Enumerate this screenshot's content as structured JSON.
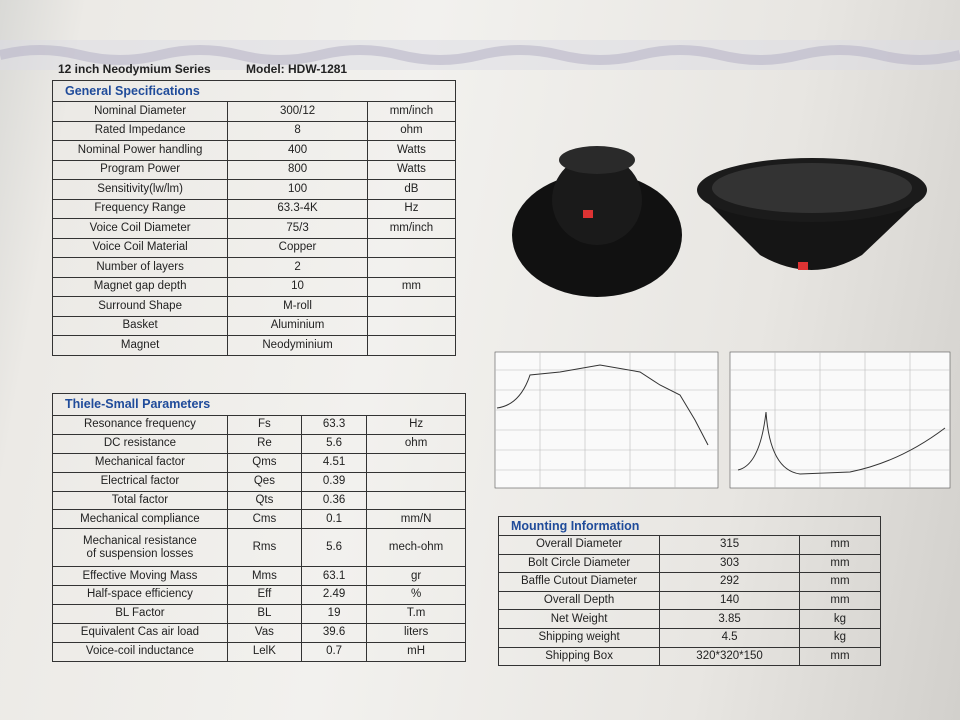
{
  "header": {
    "series": "12 inch Neodymium Series",
    "model": "Model: HDW-1281"
  },
  "general": {
    "title": "General Specifications",
    "rows": [
      [
        "Nominal Diameter",
        "300/12",
        "mm/inch"
      ],
      [
        "Rated Impedance",
        "8",
        "ohm"
      ],
      [
        "Nominal Power handling",
        "400",
        "Watts"
      ],
      [
        "Program Power",
        "800",
        "Watts"
      ],
      [
        "Sensitivity(lw/lm)",
        "100",
        "dB"
      ],
      [
        "Frequency Range",
        "63.3-4K",
        "Hz"
      ],
      [
        "Voice Coil Diameter",
        "75/3",
        "mm/inch"
      ],
      [
        "Voice Coil Material",
        "Copper"
      ],
      [
        "Number of layers",
        "2"
      ],
      [
        "Magnet gap depth",
        "10",
        "mm"
      ],
      [
        "Surround Shape",
        "M-roll"
      ],
      [
        "Basket",
        "Aluminium"
      ],
      [
        "Magnet",
        "Neodyminium"
      ]
    ]
  },
  "thiele": {
    "title": "Thiele-Small Parameters",
    "rows": [
      [
        "Resonance frequency",
        "Fs",
        "63.3",
        "Hz"
      ],
      [
        "DC resistance",
        "Re",
        "5.6",
        "ohm"
      ],
      [
        "Mechanical factor",
        "Qms",
        "4.51"
      ],
      [
        "Electrical factor",
        "Qes",
        "0.39"
      ],
      [
        "Total factor",
        "Qts",
        "0.36"
      ],
      [
        "Mechanical compliance",
        "Cms",
        "0.1",
        "mm/N"
      ],
      [
        "Mechanical resistance\nof suspension losses",
        "Rms",
        "5.6",
        "mech-ohm"
      ],
      [
        "Effective Moving Mass",
        "Mms",
        "63.1",
        "gr"
      ],
      [
        "Half-space efficiency",
        "Eff",
        "2.49",
        "%"
      ],
      [
        "BL Factor",
        "BL",
        "19",
        "T.m"
      ],
      [
        "Equivalent Cas air load",
        "Vas",
        "39.6",
        "liters"
      ],
      [
        "Voice-coil inductance",
        "LelK",
        "0.7",
        "mH"
      ]
    ]
  },
  "mounting": {
    "title": "Mounting Information",
    "rows": [
      [
        "Overall Diameter",
        "315",
        "mm"
      ],
      [
        "Bolt Circle Diameter",
        "303",
        "mm"
      ],
      [
        "Baffle Cutout Diameter",
        "292",
        "mm"
      ],
      [
        "Overall Depth",
        "140",
        "mm"
      ],
      [
        "Net Weight",
        "3.85",
        "kg"
      ],
      [
        "Shipping weight",
        "4.5",
        "kg"
      ],
      [
        "Shipping Box",
        "320*320*150",
        "mm"
      ]
    ]
  }
}
